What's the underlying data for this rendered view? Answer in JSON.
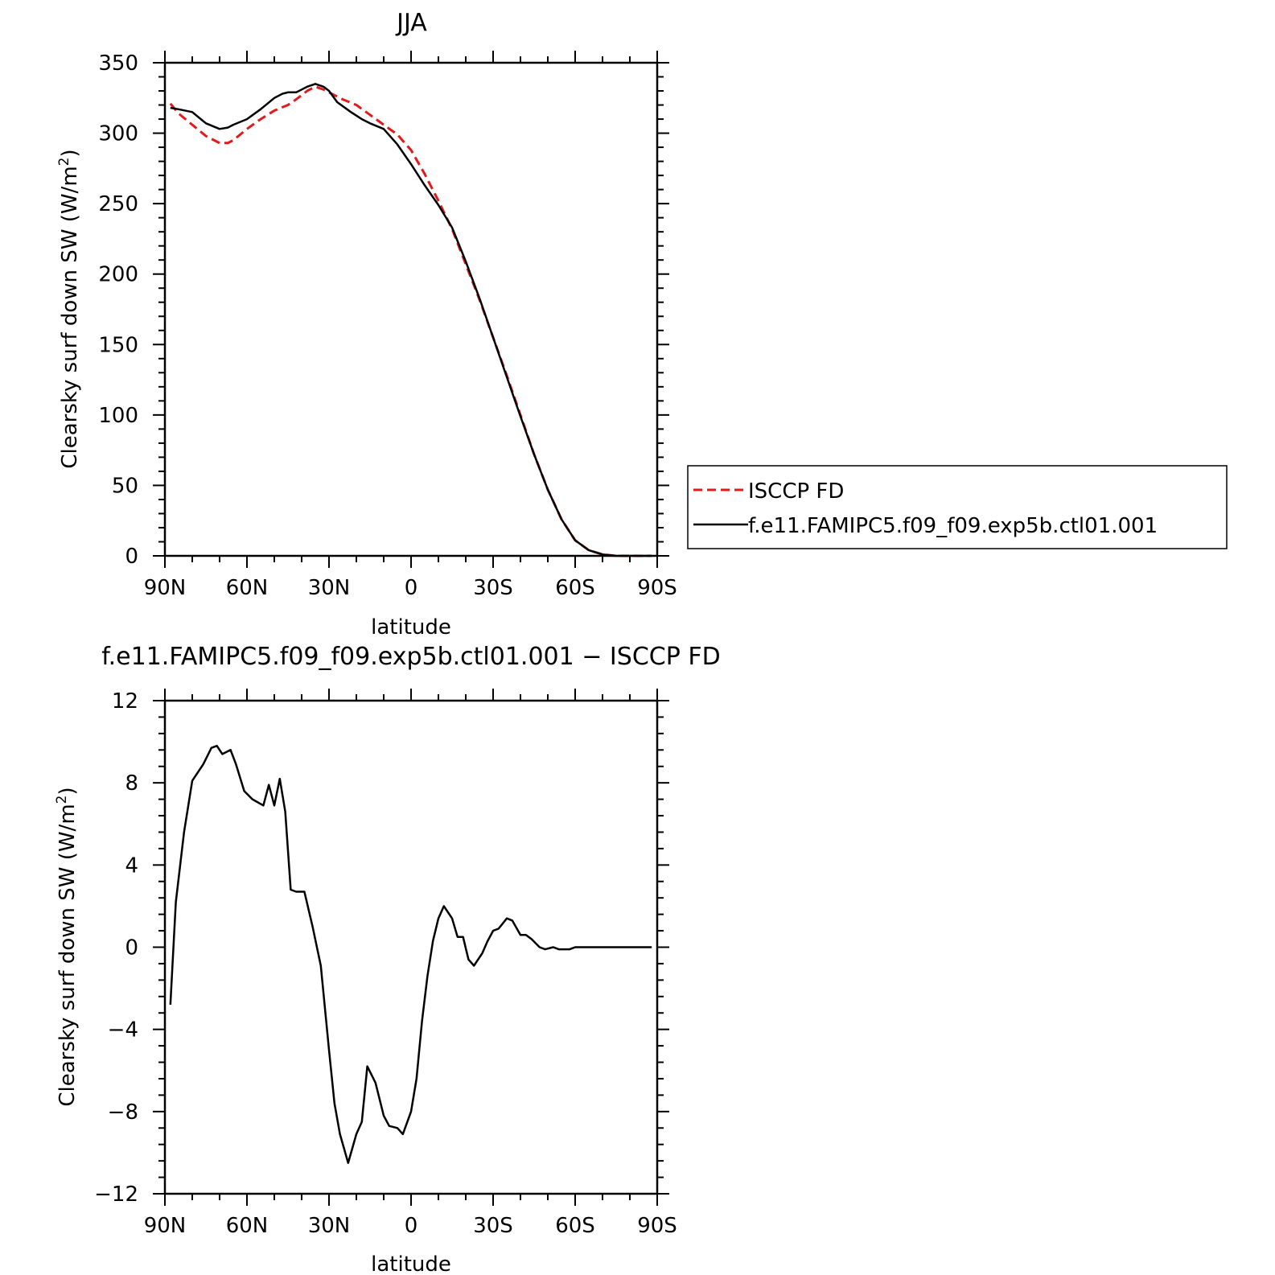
{
  "chart_data": [
    {
      "type": "line",
      "title": "JJA",
      "xlabel": "latitude",
      "ylabel": "Clearsky surf down SW (W/m",
      "ylabel_sup": "2",
      "ylabel_tail": ")",
      "xlim": [
        90,
        -90
      ],
      "ylim": [
        0,
        350
      ],
      "x_ticks": [
        90,
        60,
        30,
        0,
        -30,
        -60,
        -90
      ],
      "x_tick_labels": [
        "90N",
        "60N",
        "30N",
        "0",
        "30S",
        "60S",
        "90S"
      ],
      "y_ticks": [
        0,
        50,
        100,
        150,
        200,
        250,
        300,
        350
      ],
      "y_tick_labels": [
        "0",
        "50",
        "100",
        "150",
        "200",
        "250",
        "300",
        "350"
      ],
      "legend": {
        "placement": "right",
        "entries": [
          "ISCCP FD",
          "f.e11.FAMIPC5.f09_f09.exp5b.ctl01.001"
        ]
      },
      "series": [
        {
          "name": "ISCCP FD",
          "color": "#e31a1c",
          "dash": "dashed",
          "x": [
            88,
            85,
            80,
            75,
            70,
            67,
            65,
            60,
            55,
            50,
            45,
            42,
            38,
            35,
            32,
            30,
            25,
            20,
            15,
            10,
            5,
            0,
            -5,
            -10,
            -15,
            -20,
            -25,
            -30,
            -35,
            -40,
            -45,
            -50,
            -55,
            -60,
            -65,
            -70,
            -75,
            -78,
            -80,
            -85,
            -88
          ],
          "y": [
            321,
            314,
            306,
            298,
            293,
            293,
            295,
            303,
            310,
            316,
            320,
            324,
            330,
            333,
            331,
            329,
            324,
            320,
            313,
            306,
            299,
            288,
            271,
            252,
            232,
            207,
            182,
            155,
            128,
            100,
            72,
            47,
            26,
            11,
            4,
            1,
            0,
            0,
            0,
            0,
            0
          ]
        },
        {
          "name": "f.e11.FAMIPC5.f09_f09.exp5b.ctl01.001",
          "color": "#000000",
          "dash": "solid",
          "x": [
            88,
            85,
            80,
            75,
            70,
            67,
            65,
            60,
            55,
            50,
            47,
            45,
            42,
            38,
            35,
            32,
            30,
            27,
            22,
            18,
            15,
            10,
            5,
            0,
            -5,
            -10,
            -15,
            -20,
            -25,
            -30,
            -35,
            -40,
            -45,
            -50,
            -55,
            -60,
            -65,
            -70,
            -75,
            -78,
            -80,
            -85,
            -88
          ],
          "y": [
            318,
            317,
            315,
            307,
            303,
            304,
            306,
            310,
            317,
            325,
            328,
            329,
            329,
            333,
            335,
            333,
            330,
            322,
            315,
            310,
            307,
            303,
            292,
            278,
            263,
            249,
            233,
            209,
            183,
            155,
            127,
            99,
            72,
            47,
            26,
            11,
            4,
            1,
            0,
            0,
            0,
            0,
            0
          ]
        }
      ]
    },
    {
      "type": "line",
      "title": "f.e11.FAMIPC5.f09_f09.exp5b.ctl01.001 − ISCCP FD",
      "xlabel": "latitude",
      "ylabel": "Clearsky surf down SW (W/m",
      "ylabel_sup": "2",
      "ylabel_tail": ")",
      "xlim": [
        90,
        -90
      ],
      "ylim": [
        -12,
        12
      ],
      "x_ticks": [
        90,
        60,
        30,
        0,
        -30,
        -60,
        -90
      ],
      "x_tick_labels": [
        "90N",
        "60N",
        "30N",
        "0",
        "30S",
        "60S",
        "90S"
      ],
      "y_ticks": [
        -12,
        -8,
        -4,
        0,
        4,
        8,
        12
      ],
      "y_tick_labels": [
        "−12",
        "−8",
        "−4",
        "0",
        "4",
        "8",
        "12"
      ],
      "series": [
        {
          "color": "#000000",
          "dash": "solid",
          "x": [
            88,
            86,
            83,
            80,
            76,
            73,
            71,
            69,
            66,
            64,
            61,
            58,
            54,
            52,
            50,
            48,
            46,
            44,
            42,
            39,
            36,
            33,
            30,
            28,
            26,
            23,
            20,
            18,
            16,
            13,
            10,
            8,
            5,
            3,
            0,
            -2,
            -4,
            -6,
            -8,
            -10,
            -12,
            -15,
            -17,
            -19,
            -21,
            -23,
            -26,
            -28,
            -30,
            -32,
            -35,
            -37,
            -40,
            -42,
            -44,
            -47,
            -49,
            -52,
            -54,
            -56,
            -58,
            -60,
            -62,
            -64,
            -66,
            -68,
            -70,
            -72,
            -74,
            -76,
            -78,
            -80,
            -82,
            -84,
            -86,
            -88
          ],
          "y": [
            -2.8,
            2.2,
            5.6,
            8.1,
            8.9,
            9.7,
            9.8,
            9.4,
            9.6,
            8.9,
            7.6,
            7.2,
            6.9,
            7.9,
            6.9,
            8.2,
            6.6,
            2.8,
            2.7,
            2.7,
            1.0,
            -0.9,
            -5.0,
            -7.6,
            -9.1,
            -10.5,
            -9.1,
            -8.5,
            -5.8,
            -6.6,
            -8.2,
            -8.7,
            -8.8,
            -9.1,
            -8.0,
            -6.4,
            -3.6,
            -1.4,
            0.3,
            1.4,
            2.0,
            1.4,
            0.5,
            0.5,
            -0.6,
            -0.9,
            -0.3,
            0.3,
            0.8,
            0.9,
            1.4,
            1.3,
            0.6,
            0.6,
            0.4,
            0.0,
            -0.1,
            0.0,
            -0.1,
            -0.1,
            -0.1,
            0.0,
            0.0,
            0.0,
            0.0,
            0.0,
            0.0,
            0.0,
            0.0,
            0.0,
            0.0,
            0.0,
            0.0,
            0.0,
            0.0,
            0.0
          ]
        }
      ]
    }
  ]
}
